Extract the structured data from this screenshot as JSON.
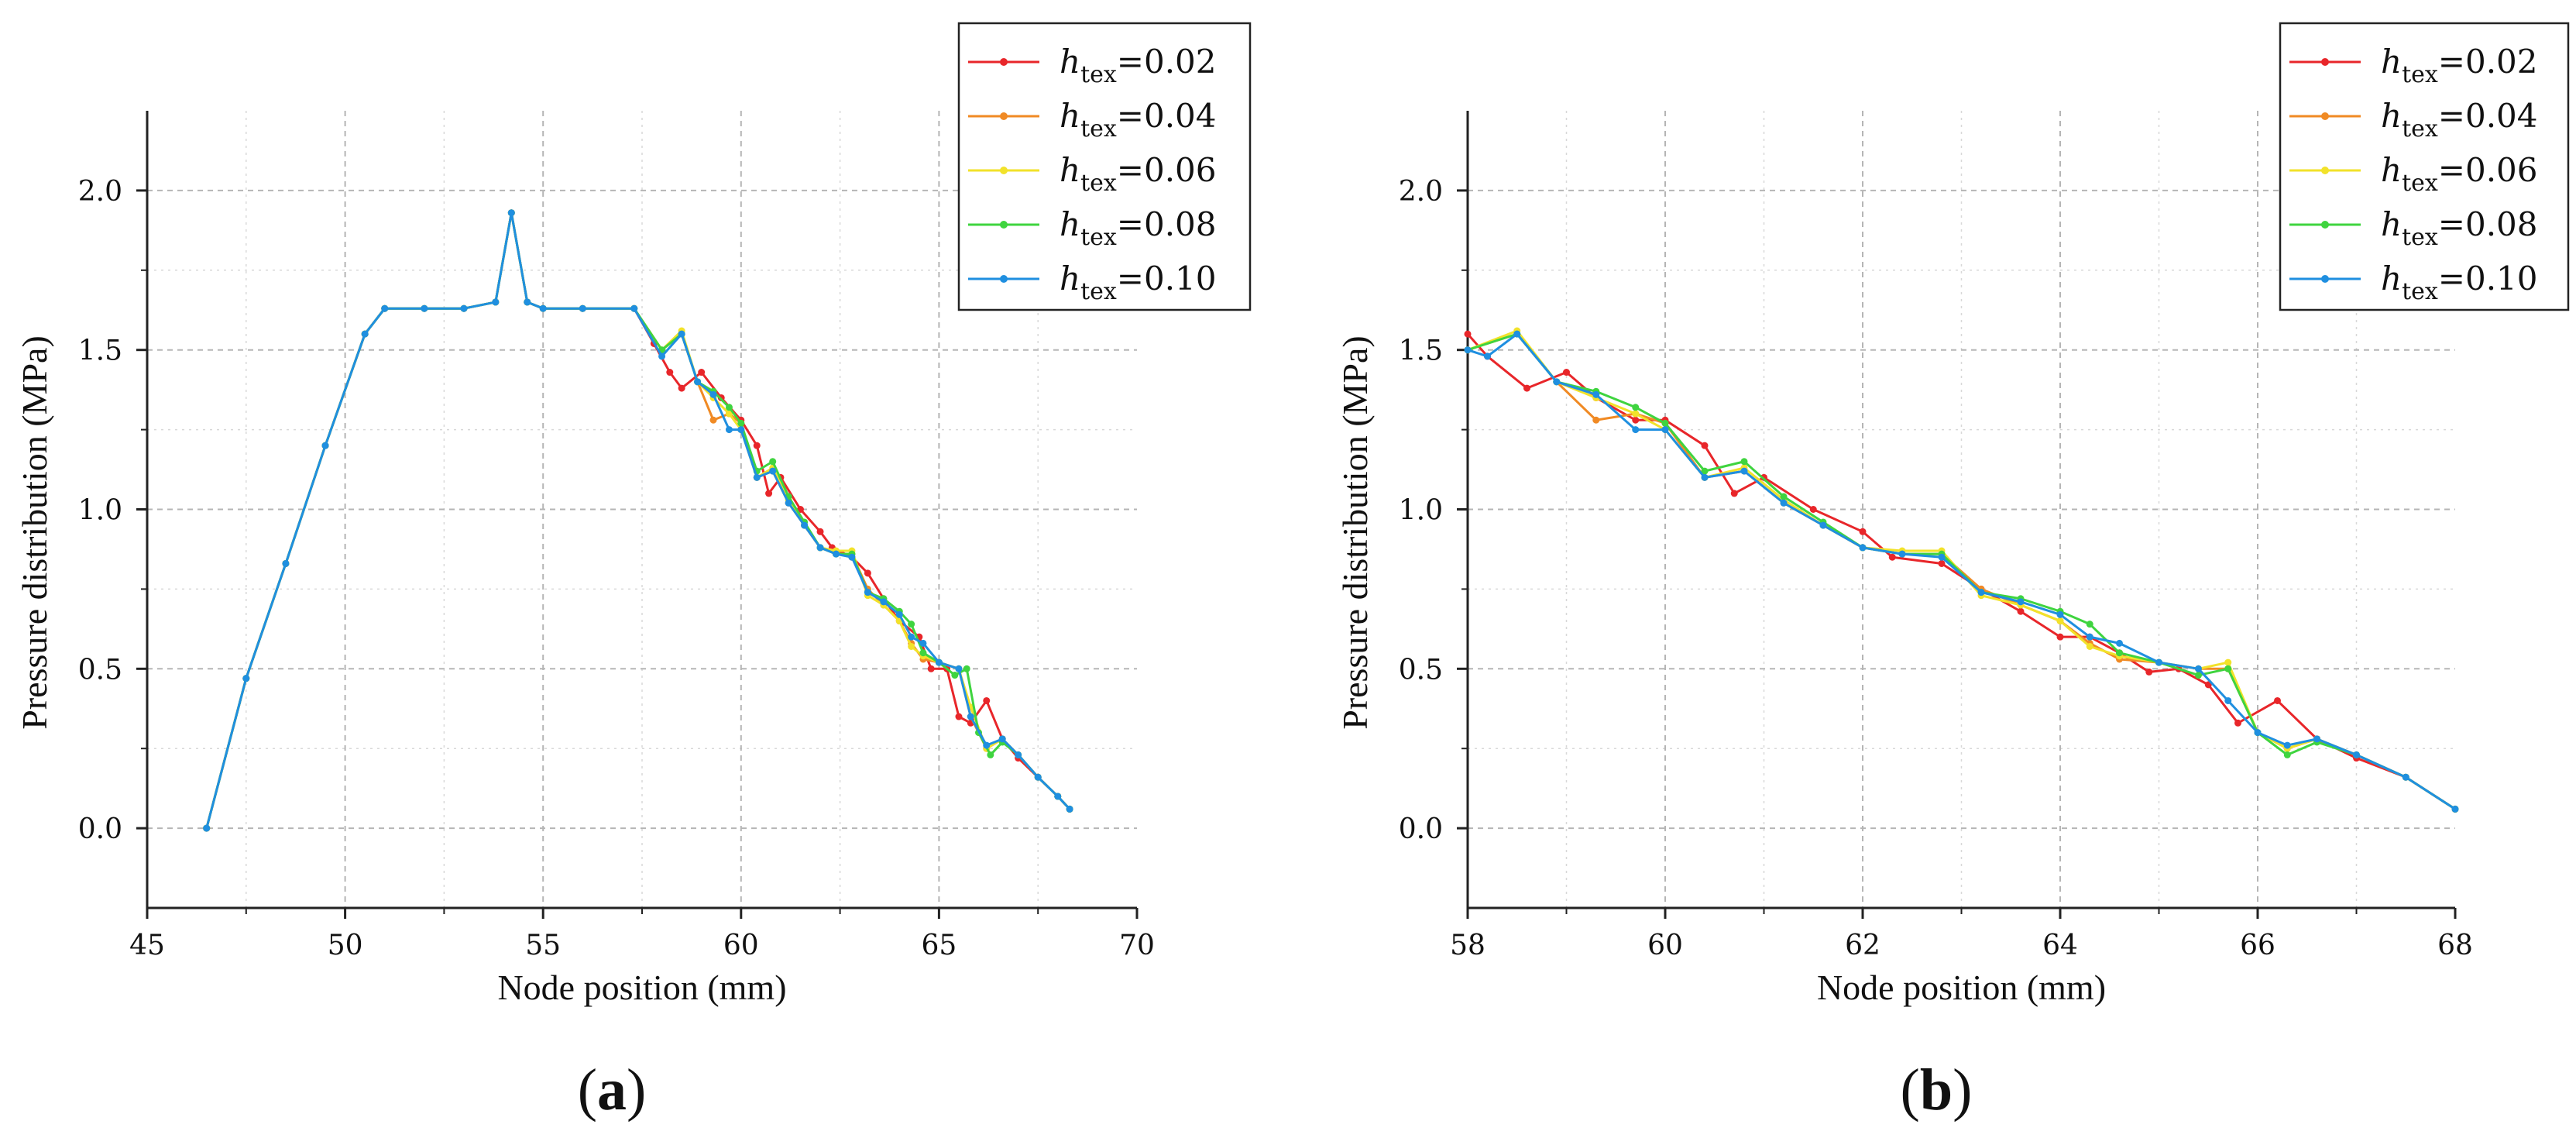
{
  "legend_prefix": "h",
  "legend_subscript": "tex",
  "colors": {
    "h002": "#e8262a",
    "h004": "#f08a24",
    "h006": "#f2e22a",
    "h008": "#3fd43f",
    "h010": "#1f8fe0"
  },
  "chart_data": [
    {
      "type": "line",
      "panel_label": [
        "(",
        "a",
        ")"
      ],
      "xlabel": "Node position (mm)",
      "ylabel": "Pressure distribution (MPa)",
      "xlim": [
        45,
        70
      ],
      "ylim": [
        -0.25,
        2.25
      ],
      "xticks": [
        45,
        50,
        55,
        60,
        65,
        70
      ],
      "yticks": [
        "0.0",
        "0.5",
        "1.0",
        "1.5",
        "2.0"
      ],
      "grid": true,
      "legend_position": "top-right",
      "series": [
        {
          "name": "=0.02",
          "color_key": "h002",
          "x": [
            46.5,
            47.5,
            48.5,
            49.5,
            50.5,
            51.0,
            52.0,
            53.0,
            53.8,
            54.2,
            54.6,
            55.0,
            56.0,
            57.3,
            57.8,
            58.2,
            58.5,
            59.0,
            59.5,
            60.0,
            60.4,
            60.7,
            61.0,
            61.5,
            62.0,
            62.3,
            62.8,
            63.2,
            63.6,
            64.0,
            64.5,
            64.8,
            65.2,
            65.5,
            65.8,
            66.2,
            66.6,
            67.0,
            67.5,
            68.0,
            68.3
          ],
          "y": [
            0.0,
            0.47,
            0.83,
            1.2,
            1.55,
            1.63,
            1.63,
            1.63,
            1.65,
            1.93,
            1.65,
            1.63,
            1.63,
            1.63,
            1.52,
            1.43,
            1.38,
            1.43,
            1.35,
            1.28,
            1.2,
            1.05,
            1.1,
            1.0,
            0.93,
            0.88,
            0.85,
            0.8,
            0.72,
            0.65,
            0.6,
            0.5,
            0.5,
            0.35,
            0.33,
            0.4,
            0.28,
            0.22,
            0.16,
            0.1,
            0.06
          ]
        },
        {
          "name": "=0.04",
          "color_key": "h004",
          "x": [
            46.5,
            47.5,
            48.5,
            49.5,
            50.5,
            51.0,
            52.0,
            53.0,
            53.8,
            54.2,
            54.6,
            55.0,
            56.0,
            57.3,
            58.0,
            58.5,
            58.9,
            59.3,
            59.7,
            60.0,
            60.4,
            60.8,
            61.2,
            61.6,
            62.0,
            62.4,
            62.8,
            63.2,
            63.6,
            64.0,
            64.3,
            64.6,
            65.0,
            65.5,
            65.8,
            66.2,
            66.6,
            67.0,
            67.5,
            68.0,
            68.3
          ],
          "y": [
            0.0,
            0.47,
            0.83,
            1.2,
            1.55,
            1.63,
            1.63,
            1.63,
            1.65,
            1.93,
            1.65,
            1.63,
            1.63,
            1.63,
            1.5,
            1.55,
            1.4,
            1.28,
            1.3,
            1.27,
            1.1,
            1.12,
            1.02,
            0.95,
            0.88,
            0.86,
            0.86,
            0.75,
            0.7,
            0.65,
            0.58,
            0.53,
            0.52,
            0.5,
            0.35,
            0.25,
            0.28,
            0.23,
            0.16,
            0.1,
            0.06
          ]
        },
        {
          "name": "=0.06",
          "color_key": "h006",
          "x": [
            46.5,
            47.5,
            48.5,
            49.5,
            50.5,
            51.0,
            52.0,
            53.0,
            53.8,
            54.2,
            54.6,
            55.0,
            56.0,
            57.3,
            58.0,
            58.5,
            58.9,
            59.3,
            59.7,
            60.0,
            60.4,
            60.8,
            61.2,
            61.6,
            62.0,
            62.4,
            62.8,
            63.2,
            63.6,
            64.0,
            64.3,
            64.6,
            65.0,
            65.5,
            65.8,
            66.2,
            66.6,
            67.0,
            67.5,
            68.0,
            68.3
          ],
          "y": [
            0.0,
            0.47,
            0.83,
            1.2,
            1.55,
            1.63,
            1.63,
            1.63,
            1.65,
            1.93,
            1.65,
            1.63,
            1.63,
            1.63,
            1.5,
            1.56,
            1.4,
            1.35,
            1.3,
            1.25,
            1.1,
            1.13,
            1.03,
            0.95,
            0.88,
            0.87,
            0.87,
            0.73,
            0.7,
            0.65,
            0.57,
            0.54,
            0.52,
            0.5,
            0.38,
            0.25,
            0.28,
            0.23,
            0.16,
            0.1,
            0.06
          ]
        },
        {
          "name": "=0.08",
          "color_key": "h008",
          "x": [
            46.5,
            47.5,
            48.5,
            49.5,
            50.5,
            51.0,
            52.0,
            53.0,
            53.8,
            54.2,
            54.6,
            55.0,
            56.0,
            57.3,
            58.0,
            58.5,
            58.9,
            59.3,
            59.7,
            60.0,
            60.4,
            60.8,
            61.2,
            61.6,
            62.0,
            62.4,
            62.8,
            63.2,
            63.6,
            64.0,
            64.3,
            64.6,
            65.0,
            65.4,
            65.7,
            66.0,
            66.3,
            66.6,
            67.0,
            67.5,
            68.0,
            68.3
          ],
          "y": [
            0.0,
            0.47,
            0.83,
            1.2,
            1.55,
            1.63,
            1.63,
            1.63,
            1.65,
            1.93,
            1.65,
            1.63,
            1.63,
            1.63,
            1.5,
            1.55,
            1.4,
            1.37,
            1.32,
            1.27,
            1.12,
            1.15,
            1.04,
            0.96,
            0.88,
            0.86,
            0.86,
            0.74,
            0.72,
            0.68,
            0.64,
            0.55,
            0.52,
            0.48,
            0.5,
            0.3,
            0.23,
            0.27,
            0.23,
            0.16,
            0.1,
            0.06
          ]
        },
        {
          "name": "=0.10",
          "color_key": "h010",
          "x": [
            46.5,
            47.5,
            48.5,
            49.5,
            50.5,
            51.0,
            52.0,
            53.0,
            53.8,
            54.2,
            54.6,
            55.0,
            56.0,
            57.3,
            58.0,
            58.5,
            58.9,
            59.3,
            59.7,
            60.0,
            60.4,
            60.8,
            61.2,
            61.6,
            62.0,
            62.4,
            62.8,
            63.2,
            63.6,
            64.0,
            64.3,
            64.6,
            65.0,
            65.5,
            65.8,
            66.2,
            66.6,
            67.0,
            67.5,
            68.0,
            68.3
          ],
          "y": [
            0.0,
            0.47,
            0.83,
            1.2,
            1.55,
            1.63,
            1.63,
            1.63,
            1.65,
            1.93,
            1.65,
            1.63,
            1.63,
            1.63,
            1.48,
            1.55,
            1.4,
            1.36,
            1.25,
            1.25,
            1.1,
            1.12,
            1.02,
            0.95,
            0.88,
            0.86,
            0.85,
            0.74,
            0.71,
            0.67,
            0.6,
            0.58,
            0.52,
            0.5,
            0.35,
            0.26,
            0.28,
            0.23,
            0.16,
            0.1,
            0.06
          ]
        }
      ]
    },
    {
      "type": "line",
      "panel_label": [
        "(",
        "b",
        ")"
      ],
      "xlabel": "Node position (mm)",
      "ylabel": "Pressure distribution (MPa)",
      "xlim": [
        58,
        68
      ],
      "ylim": [
        -0.25,
        2.25
      ],
      "xticks": [
        58,
        60,
        62,
        64,
        66,
        68
      ],
      "yticks": [
        "0.0",
        "0.5",
        "1.0",
        "1.5",
        "2.0"
      ],
      "grid": true,
      "legend_position": "top-right",
      "series": [
        {
          "name": "=0.02",
          "color_key": "h002",
          "x": [
            58.0,
            58.2,
            58.6,
            59.0,
            59.3,
            59.7,
            60.0,
            60.4,
            60.7,
            61.0,
            61.5,
            62.0,
            62.3,
            62.8,
            63.2,
            63.6,
            64.0,
            64.3,
            64.6,
            64.9,
            65.2,
            65.5,
            65.8,
            66.2,
            66.6,
            67.0,
            67.5,
            68.0
          ],
          "y": [
            1.55,
            1.48,
            1.38,
            1.43,
            1.35,
            1.28,
            1.28,
            1.2,
            1.05,
            1.1,
            1.0,
            0.93,
            0.85,
            0.83,
            0.75,
            0.68,
            0.6,
            0.6,
            0.55,
            0.49,
            0.5,
            0.45,
            0.33,
            0.4,
            0.28,
            0.22,
            0.16,
            0.06
          ]
        },
        {
          "name": "=0.04",
          "color_key": "h004",
          "x": [
            58.0,
            58.5,
            58.9,
            59.3,
            59.7,
            60.0,
            60.4,
            60.8,
            61.2,
            61.6,
            62.0,
            62.4,
            62.8,
            63.2,
            63.6,
            64.0,
            64.3,
            64.6,
            65.0,
            65.4,
            65.7,
            66.0,
            66.3,
            66.6,
            67.0,
            67.5,
            68.0
          ],
          "y": [
            1.5,
            1.55,
            1.4,
            1.28,
            1.3,
            1.27,
            1.1,
            1.12,
            1.02,
            0.95,
            0.88,
            0.86,
            0.86,
            0.75,
            0.7,
            0.65,
            0.58,
            0.53,
            0.52,
            0.5,
            0.5,
            0.3,
            0.25,
            0.28,
            0.23,
            0.16,
            0.06
          ]
        },
        {
          "name": "=0.06",
          "color_key": "h006",
          "x": [
            58.0,
            58.5,
            58.9,
            59.3,
            59.7,
            60.0,
            60.4,
            60.8,
            61.2,
            61.6,
            62.0,
            62.4,
            62.8,
            63.2,
            63.6,
            64.0,
            64.3,
            64.6,
            65.0,
            65.4,
            65.7,
            66.0,
            66.3,
            66.6,
            67.0,
            67.5,
            68.0
          ],
          "y": [
            1.5,
            1.56,
            1.4,
            1.35,
            1.3,
            1.25,
            1.1,
            1.13,
            1.03,
            0.95,
            0.88,
            0.87,
            0.87,
            0.73,
            0.7,
            0.65,
            0.57,
            0.54,
            0.52,
            0.5,
            0.52,
            0.3,
            0.25,
            0.28,
            0.23,
            0.16,
            0.06
          ]
        },
        {
          "name": "=0.08",
          "color_key": "h008",
          "x": [
            58.0,
            58.5,
            58.9,
            59.3,
            59.7,
            60.0,
            60.4,
            60.8,
            61.2,
            61.6,
            62.0,
            62.4,
            62.8,
            63.2,
            63.6,
            64.0,
            64.3,
            64.6,
            65.0,
            65.4,
            65.7,
            66.0,
            66.3,
            66.6,
            67.0,
            67.5,
            68.0
          ],
          "y": [
            1.5,
            1.55,
            1.4,
            1.37,
            1.32,
            1.27,
            1.12,
            1.15,
            1.04,
            0.96,
            0.88,
            0.86,
            0.86,
            0.74,
            0.72,
            0.68,
            0.64,
            0.55,
            0.52,
            0.48,
            0.5,
            0.3,
            0.23,
            0.27,
            0.23,
            0.16,
            0.06
          ]
        },
        {
          "name": "=0.10",
          "color_key": "h010",
          "x": [
            58.0,
            58.2,
            58.5,
            58.9,
            59.3,
            59.7,
            60.0,
            60.4,
            60.8,
            61.2,
            61.6,
            62.0,
            62.4,
            62.8,
            63.2,
            63.6,
            64.0,
            64.3,
            64.6,
            65.0,
            65.4,
            65.7,
            66.0,
            66.3,
            66.6,
            67.0,
            67.5,
            68.0
          ],
          "y": [
            1.5,
            1.48,
            1.55,
            1.4,
            1.36,
            1.25,
            1.25,
            1.1,
            1.12,
            1.02,
            0.95,
            0.88,
            0.86,
            0.85,
            0.74,
            0.71,
            0.67,
            0.6,
            0.58,
            0.52,
            0.5,
            0.4,
            0.3,
            0.26,
            0.28,
            0.23,
            0.16,
            0.06
          ]
        }
      ]
    }
  ]
}
